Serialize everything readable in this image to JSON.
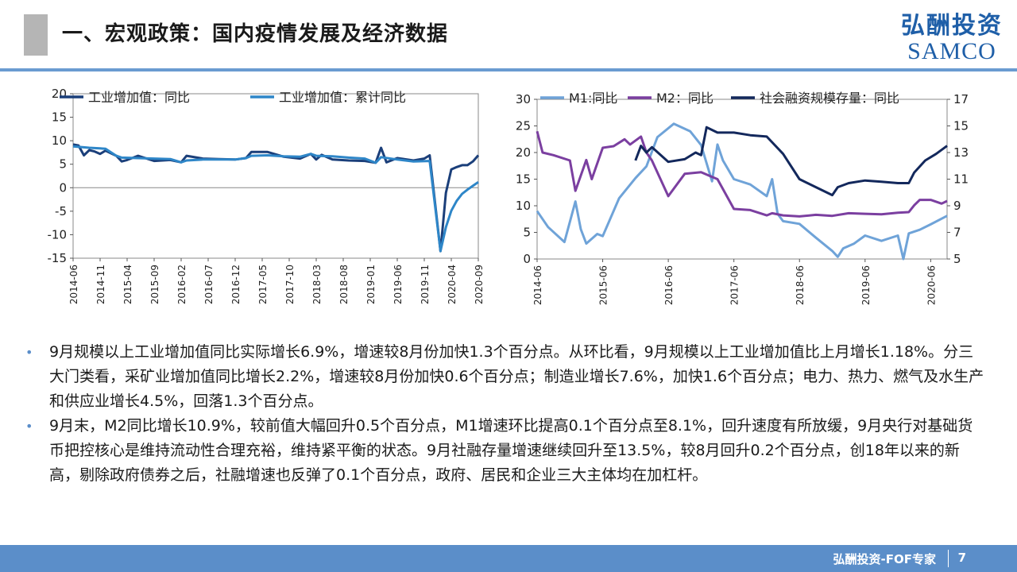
{
  "header": {
    "title": "一、宏观政策：国内疫情发展及经济数据",
    "brand_cn": "弘酬投资",
    "brand_en": "SAMCO"
  },
  "colors": {
    "brand": "#1f5fa8",
    "accent": "#5b8ec9",
    "rule": "#6a9bd1",
    "title_bar": "#b5b5b5"
  },
  "chart_data": [
    {
      "type": "line",
      "title": "",
      "xlabel": "",
      "ylabel": "",
      "ylim": [
        -15,
        20
      ],
      "yticks": [
        -15,
        -10,
        -5,
        0,
        5,
        10,
        15,
        20
      ],
      "x_tick_labels": [
        "2014-06",
        "2014-11",
        "2015-04",
        "2015-09",
        "2016-02",
        "2016-07",
        "2016-12",
        "2017-05",
        "2017-10",
        "2018-03",
        "2018-08",
        "2019-01",
        "2019-06",
        "2019-11",
        "2020-04",
        "2020-09"
      ],
      "legend_position": "top",
      "series": [
        {
          "name": "工业增加值：同比",
          "color": "#1b3f7a",
          "x": [
            "2014-06",
            "2014-07",
            "2014-08",
            "2014-09",
            "2014-10",
            "2014-11",
            "2014-12",
            "2015-02",
            "2015-03",
            "2015-04",
            "2015-06",
            "2015-09",
            "2015-12",
            "2016-02",
            "2016-03",
            "2016-06",
            "2016-09",
            "2016-12",
            "2017-02",
            "2017-03",
            "2017-06",
            "2017-09",
            "2017-12",
            "2018-02",
            "2018-03",
            "2018-04",
            "2018-06",
            "2018-09",
            "2018-12",
            "2019-02",
            "2019-03",
            "2019-04",
            "2019-06",
            "2019-09",
            "2019-11",
            "2019-12",
            "2020-02",
            "2020-03",
            "2020-04",
            "2020-05",
            "2020-06",
            "2020-07",
            "2020-08",
            "2020-09"
          ],
          "values": [
            9.2,
            9.0,
            6.9,
            8.0,
            7.7,
            7.2,
            7.9,
            6.8,
            5.6,
            5.9,
            6.8,
            5.7,
            5.9,
            5.4,
            6.8,
            6.2,
            6.1,
            6.0,
            6.3,
            7.6,
            7.6,
            6.6,
            6.2,
            7.2,
            6.0,
            7.0,
            6.0,
            5.8,
            5.7,
            5.3,
            8.5,
            5.4,
            6.3,
            5.8,
            6.2,
            6.9,
            -13.5,
            -1.1,
            3.9,
            4.4,
            4.8,
            4.8,
            5.6,
            6.9
          ]
        },
        {
          "name": "工业增加值：累计同比",
          "color": "#2e86c8",
          "x": [
            "2014-06",
            "2014-09",
            "2014-12",
            "2015-02",
            "2015-03",
            "2015-06",
            "2015-09",
            "2015-12",
            "2016-02",
            "2016-03",
            "2016-06",
            "2016-09",
            "2016-12",
            "2017-02",
            "2017-03",
            "2017-06",
            "2017-09",
            "2017-12",
            "2018-02",
            "2018-03",
            "2018-06",
            "2018-09",
            "2018-12",
            "2019-02",
            "2019-03",
            "2019-06",
            "2019-09",
            "2019-12",
            "2020-02",
            "2020-03",
            "2020-04",
            "2020-05",
            "2020-06",
            "2020-07",
            "2020-08",
            "2020-09"
          ],
          "values": [
            8.8,
            8.5,
            8.3,
            6.8,
            6.4,
            6.3,
            6.2,
            6.1,
            5.4,
            5.8,
            6.0,
            6.0,
            6.0,
            6.3,
            6.8,
            6.9,
            6.7,
            6.6,
            7.2,
            6.8,
            6.7,
            6.4,
            6.2,
            5.3,
            6.5,
            6.0,
            5.6,
            5.7,
            -13.5,
            -8.4,
            -4.9,
            -2.8,
            -1.3,
            -0.4,
            0.4,
            1.2
          ]
        }
      ]
    },
    {
      "type": "line",
      "title": "",
      "xlabel": "",
      "ylabel": "",
      "ylim": [
        0,
        30
      ],
      "yticks": [
        0,
        5,
        10,
        15,
        20,
        25,
        30
      ],
      "y2lim": [
        5,
        17
      ],
      "y2ticks": [
        5,
        7,
        9,
        11,
        13,
        15,
        17
      ],
      "x_tick_labels": [
        "2014-06",
        "2015-06",
        "2016-06",
        "2017-06",
        "2018-06",
        "2019-06",
        "2020-06"
      ],
      "legend_position": "top",
      "series": [
        {
          "name": "M1:同比",
          "color": "#6fa3d8",
          "axis": "left",
          "x": [
            "2014-06",
            "2014-08",
            "2014-11",
            "2015-01",
            "2015-02",
            "2015-03",
            "2015-05",
            "2015-06",
            "2015-09",
            "2015-12",
            "2016-02",
            "2016-04",
            "2016-07",
            "2016-10",
            "2016-12",
            "2017-02",
            "2017-03",
            "2017-04",
            "2017-06",
            "2017-09",
            "2017-12",
            "2018-01",
            "2018-02",
            "2018-03",
            "2018-06",
            "2018-09",
            "2018-12",
            "2019-01",
            "2019-02",
            "2019-04",
            "2019-06",
            "2019-09",
            "2019-12",
            "2020-01",
            "2020-02",
            "2020-04",
            "2020-06",
            "2020-09"
          ],
          "values": [
            9.0,
            6.0,
            3.2,
            10.8,
            5.6,
            2.9,
            4.7,
            4.3,
            11.4,
            15.2,
            17.4,
            22.9,
            25.4,
            24.0,
            21.4,
            14.6,
            21.5,
            18.5,
            15.0,
            14.0,
            11.8,
            15.0,
            8.5,
            7.1,
            6.6,
            4.0,
            1.5,
            0.4,
            2.0,
            2.9,
            4.4,
            3.4,
            4.4,
            0.0,
            4.8,
            5.5,
            6.5,
            8.1
          ]
        },
        {
          "name": "M2：同比",
          "color": "#7b3fa0",
          "axis": "left",
          "x": [
            "2014-06",
            "2014-07",
            "2014-09",
            "2014-12",
            "2015-01",
            "2015-03",
            "2015-04",
            "2015-06",
            "2015-08",
            "2015-10",
            "2015-11",
            "2016-01",
            "2016-02",
            "2016-03",
            "2016-06",
            "2016-09",
            "2016-12",
            "2017-03",
            "2017-06",
            "2017-09",
            "2017-12",
            "2018-01",
            "2018-03",
            "2018-06",
            "2018-09",
            "2018-12",
            "2019-03",
            "2019-06",
            "2019-09",
            "2019-12",
            "2020-02",
            "2020-03",
            "2020-04",
            "2020-06",
            "2020-08",
            "2020-09"
          ],
          "values": [
            24.0,
            20.0,
            19.5,
            18.5,
            12.8,
            18.6,
            15.0,
            20.9,
            21.2,
            22.5,
            21.5,
            23.0,
            20.0,
            18.5,
            11.8,
            16.0,
            16.3,
            15.0,
            9.4,
            9.2,
            8.2,
            8.6,
            8.2,
            8.0,
            8.3,
            8.1,
            8.6,
            8.5,
            8.4,
            8.7,
            8.8,
            10.1,
            11.1,
            11.1,
            10.4,
            10.9
          ]
        },
        {
          "name": "社会融资规模存量：同比",
          "color": "#13285c",
          "axis": "right",
          "x": [
            "2015-12",
            "2016-01",
            "2016-02",
            "2016-03",
            "2016-06",
            "2016-09",
            "2016-11",
            "2016-12",
            "2017-01",
            "2017-03",
            "2017-06",
            "2017-09",
            "2017-12",
            "2018-03",
            "2018-06",
            "2018-09",
            "2018-12",
            "2019-01",
            "2019-03",
            "2019-06",
            "2019-09",
            "2019-12",
            "2020-02",
            "2020-03",
            "2020-05",
            "2020-07",
            "2020-09"
          ],
          "values": [
            12.4,
            13.5,
            13.0,
            13.4,
            12.3,
            12.5,
            13.0,
            12.8,
            14.9,
            14.5,
            14.5,
            14.3,
            14.2,
            12.9,
            11.0,
            10.4,
            9.8,
            10.4,
            10.7,
            10.9,
            10.8,
            10.7,
            10.7,
            11.5,
            12.4,
            12.9,
            13.5
          ]
        }
      ]
    }
  ],
  "bullets": [
    "9月规模以上工业增加值同比实际增长6.9%，增速较8月份加快1.3个百分点。从环比看，9月规模以上工业增加值比上月增长1.18%。分三大门类看，采矿业增加值同比增长2.2%，增速较8月份加快0.6个百分点；制造业增长7.6%，加快1.6个百分点；电力、热力、燃气及水生产和供应业增长4.5%，回落1.3个百分点。",
    "9月末，M2同比增长10.9%，较前值大幅回升0.5个百分点，M1增速环比提高0.1个百分点至8.1%，回升速度有所放缓，9月央行对基础货币把控核心是维持流动性合理充裕，维持紧平衡的状态。9月社融存量增速继续回升至13.5%，较8月回升0.2个百分点，创18年以来的新高，剔除政府债券之后，社融增速也反弹了0.1个百分点，政府、居民和企业三大主体均在加杠杆。"
  ],
  "footer": {
    "text": "弘酬投资-FOF专家",
    "page": "7"
  }
}
